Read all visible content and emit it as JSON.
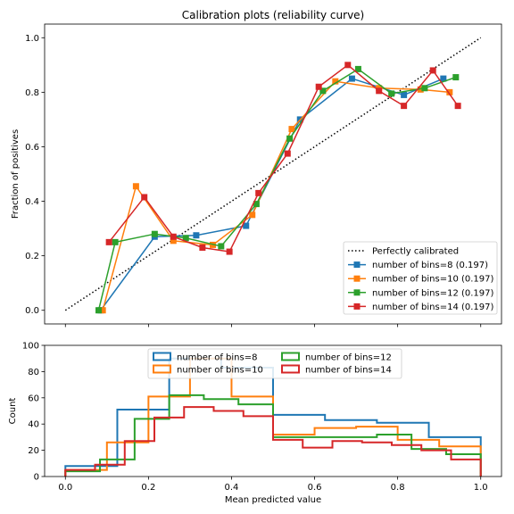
{
  "chart_data": [
    {
      "type": "line",
      "title": "Calibration plots  (reliability curve)",
      "xlabel": "",
      "ylabel": "Fraction of positives",
      "xlim": [
        -0.05,
        1.05
      ],
      "ylim": [
        -0.05,
        1.05
      ],
      "yticks": [
        0.0,
        0.2,
        0.4,
        0.6,
        0.8,
        1.0
      ],
      "ytick_labels": [
        "0.0",
        "0.2",
        "0.4",
        "0.6",
        "0.8",
        "1.0"
      ],
      "grid": false,
      "legend_position": "lower-right",
      "reference": {
        "name": "Perfectly calibrated",
        "x": [
          0,
          1
        ],
        "y": [
          0,
          1
        ],
        "style": "dotted",
        "color": "#000000"
      },
      "series": [
        {
          "name": "number of bins=8 (0.197)",
          "color": "#1f77b4",
          "x": [
            0.085,
            0.215,
            0.315,
            0.435,
            0.565,
            0.69,
            0.815,
            0.91
          ],
          "y": [
            0.0,
            0.27,
            0.275,
            0.31,
            0.7,
            0.85,
            0.79,
            0.85
          ]
        },
        {
          "name": "number of bins=10 (0.197)",
          "color": "#ff7f0e",
          "x": [
            0.09,
            0.17,
            0.26,
            0.355,
            0.45,
            0.545,
            0.65,
            0.755,
            0.855,
            0.925
          ],
          "y": [
            0.0,
            0.455,
            0.255,
            0.24,
            0.35,
            0.665,
            0.84,
            0.815,
            0.81,
            0.8
          ]
        },
        {
          "name": "number of bins=12 (0.197)",
          "color": "#2ca02c",
          "x": [
            0.08,
            0.12,
            0.215,
            0.29,
            0.375,
            0.46,
            0.54,
            0.62,
            0.705,
            0.785,
            0.865,
            0.94
          ],
          "y": [
            0.0,
            0.25,
            0.28,
            0.265,
            0.235,
            0.39,
            0.63,
            0.805,
            0.885,
            0.795,
            0.815,
            0.855
          ]
        },
        {
          "name": "number of bins=14 (0.197)",
          "color": "#d62728",
          "x": [
            0.105,
            0.19,
            0.26,
            0.33,
            0.395,
            0.465,
            0.535,
            0.61,
            0.68,
            0.755,
            0.815,
            0.885,
            0.945
          ],
          "y": [
            0.25,
            0.415,
            0.27,
            0.23,
            0.215,
            0.43,
            0.575,
            0.82,
            0.9,
            0.805,
            0.75,
            0.88,
            0.75
          ]
        }
      ]
    },
    {
      "type": "histogram",
      "title": "",
      "xlabel": "Mean predicted value",
      "ylabel": "Count",
      "xlim": [
        -0.05,
        1.05
      ],
      "ylim": [
        0,
        100
      ],
      "xticks": [
        0.0,
        0.2,
        0.4,
        0.6,
        0.8,
        1.0
      ],
      "xtick_labels": [
        "0.0",
        "0.2",
        "0.4",
        "0.6",
        "0.8",
        "1.0"
      ],
      "yticks": [
        0,
        20,
        40,
        60,
        80,
        100
      ],
      "ytick_labels": [
        "0",
        "20",
        "40",
        "60",
        "80",
        "100"
      ],
      "grid": false,
      "legend_position": "top-center",
      "legend_columns": 2,
      "series": [
        {
          "name": "number of bins=8",
          "color": "#1f77b4",
          "edges": [
            0,
            0.125,
            0.25,
            0.375,
            0.5,
            0.625,
            0.75,
            0.875,
            1.0
          ],
          "counts": [
            8,
            51,
            90,
            83,
            47,
            43,
            41,
            30
          ]
        },
        {
          "name": "number of bins=10",
          "color": "#ff7f0e",
          "edges": [
            0,
            0.1,
            0.2,
            0.3,
            0.4,
            0.5,
            0.6,
            0.7,
            0.8,
            0.9,
            1.0
          ],
          "counts": [
            5,
            26,
            61,
            90,
            61,
            32,
            37,
            38,
            28,
            23
          ]
        },
        {
          "name": "number of bins=12",
          "color": "#2ca02c",
          "edges": [
            0,
            0.0833,
            0.1667,
            0.25,
            0.3333,
            0.4167,
            0.5,
            0.5833,
            0.6667,
            0.75,
            0.8333,
            0.9167,
            1.0
          ],
          "counts": [
            4,
            13,
            44,
            62,
            59,
            55,
            30,
            30,
            30,
            32,
            21,
            17
          ]
        },
        {
          "name": "number of bins=14",
          "color": "#d62728",
          "edges": [
            0,
            0.0714,
            0.1429,
            0.2143,
            0.2857,
            0.3571,
            0.4286,
            0.5,
            0.5714,
            0.6429,
            0.7143,
            0.7857,
            0.8571,
            0.9286,
            1.0
          ],
          "counts": [
            5,
            9,
            27,
            45,
            53,
            50,
            46,
            28,
            22,
            27,
            26,
            24,
            20,
            13
          ]
        }
      ]
    }
  ]
}
